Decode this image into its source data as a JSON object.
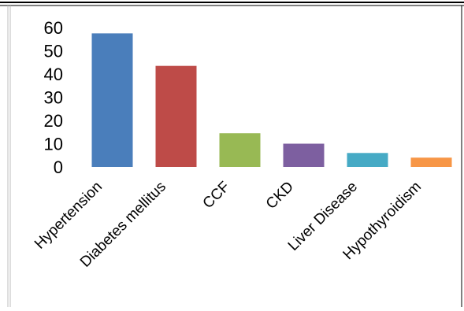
{
  "chart_data": {
    "type": "bar",
    "categories": [
      "Hypertension",
      "Diabetes mellitus",
      "CCF",
      "CKD",
      "Liver Disease",
      "Hypothyroidism"
    ],
    "values": [
      57.5,
      43.5,
      14.5,
      10,
      6,
      4
    ],
    "colors": [
      "#4a7ebb",
      "#be4b48",
      "#98b954",
      "#7d5fa0",
      "#46aac5",
      "#f79646"
    ],
    "yticks": [
      "0",
      "10",
      "20",
      "30",
      "40",
      "50",
      "60"
    ],
    "ylim": [
      0,
      60
    ],
    "grid": false,
    "legend": "none",
    "title": "",
    "xlabel": "",
    "ylabel": ""
  }
}
